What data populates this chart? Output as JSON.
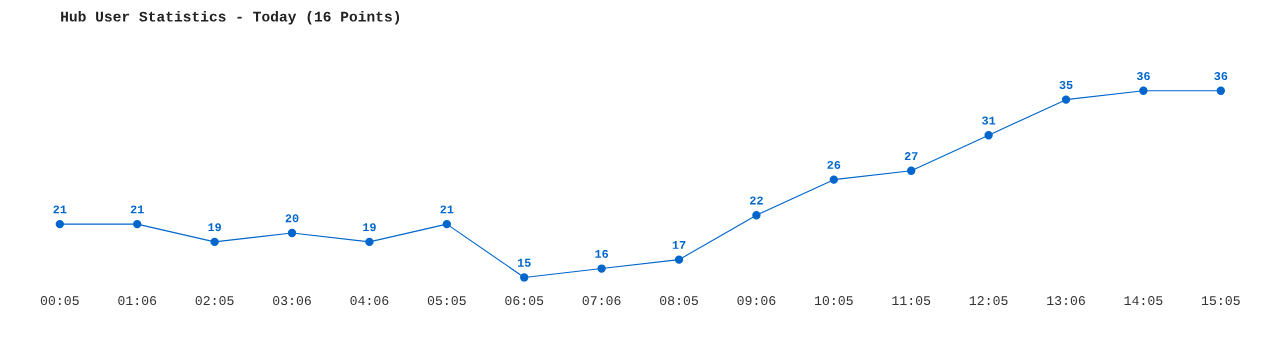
{
  "chart_data": {
    "type": "line",
    "title": "Hub User Statistics - Today (16 Points)",
    "categories": [
      "00:05",
      "01:06",
      "02:05",
      "03:06",
      "04:06",
      "05:05",
      "06:05",
      "07:06",
      "08:05",
      "09:06",
      "10:05",
      "11:05",
      "12:05",
      "13:06",
      "14:05",
      "15:05"
    ],
    "series": [
      {
        "color": "#0066cc",
        "values": [
          21,
          21,
          19,
          20,
          19,
          21,
          15,
          16,
          17,
          22,
          26,
          27,
          31,
          35,
          36,
          36
        ]
      }
    ],
    "data_labels": true,
    "marker": "circle",
    "line_style": "solid",
    "grid": false,
    "legend": false,
    "tick_labels": "x"
  }
}
